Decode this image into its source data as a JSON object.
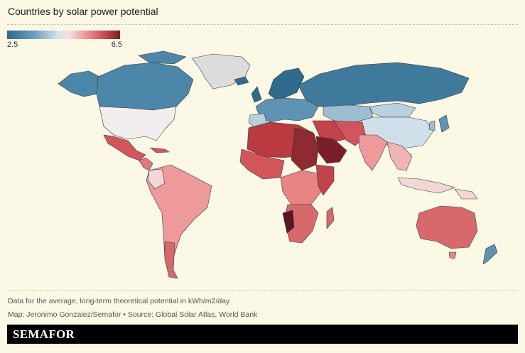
{
  "title": "Countries by solar power potential",
  "legend": {
    "min": "2.5",
    "max": "6.5"
  },
  "footnote": "Data for the average, long-term theoretical potential in kWh/m2/day",
  "credit": "Map: Jeronimo Gonzalez/Semafor • Source: Global Solar Atlas, World Bank",
  "brand": "SEMAFOR",
  "colors": {
    "background": "#fbf8e6",
    "scale_low": "#2e6b8c",
    "scale_mid": "#eeeeee",
    "scale_high": "#7a1f28",
    "no_data": "#dcdcdc"
  }
}
